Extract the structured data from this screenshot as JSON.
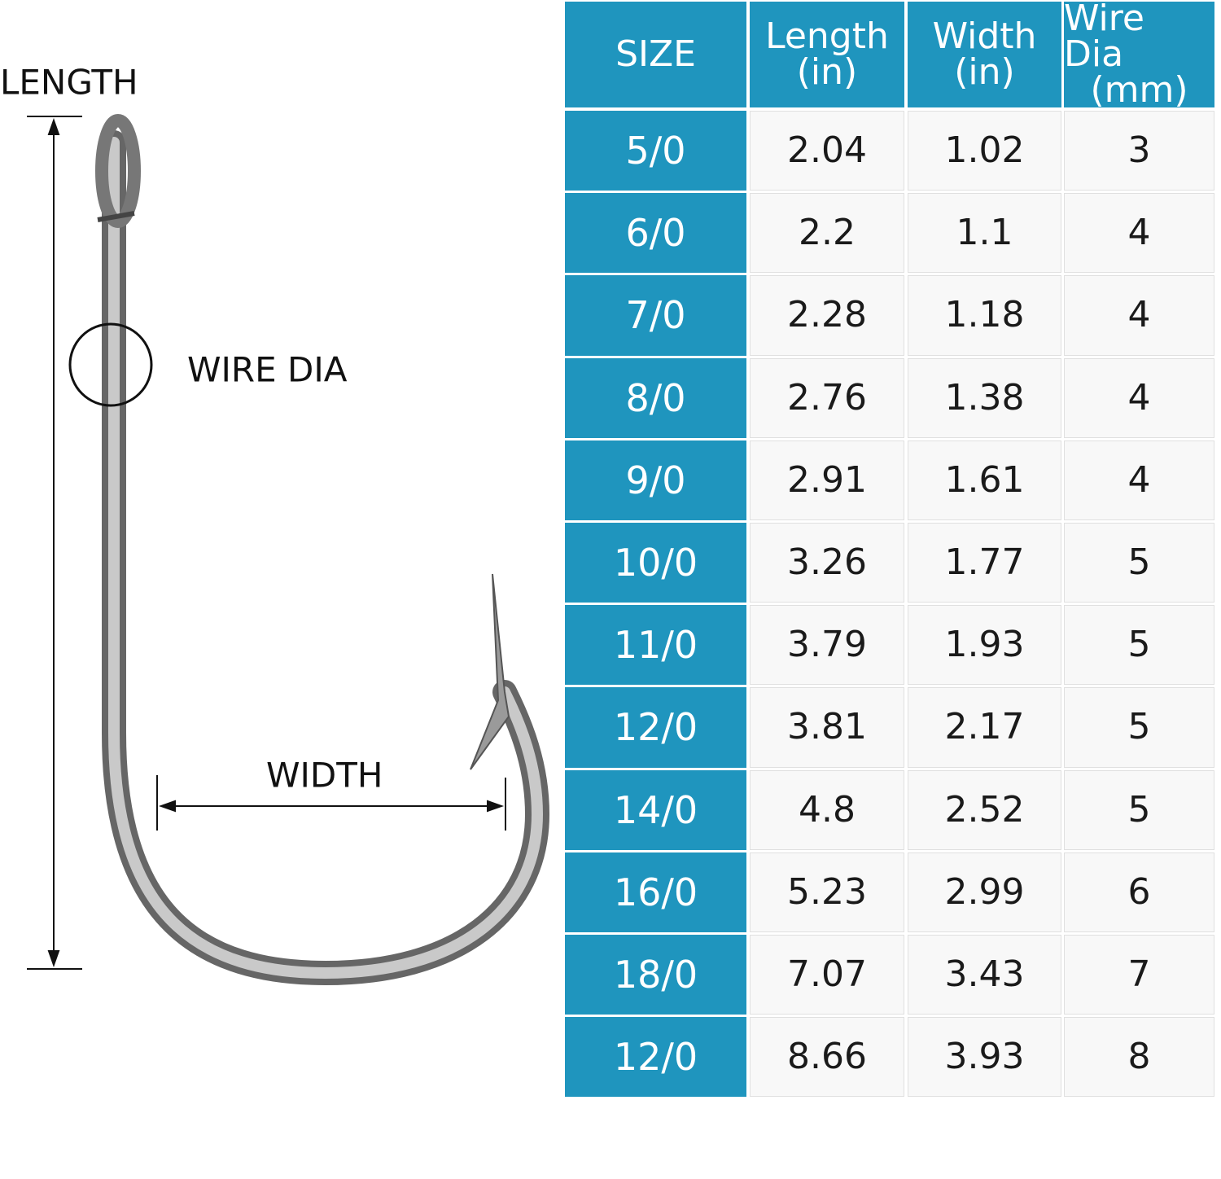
{
  "diagram": {
    "length_label": "LENGTH",
    "wire_label": "WIRE DIA",
    "width_label": "WIDTH"
  },
  "table": {
    "header": [
      [
        "SIZE"
      ],
      [
        "Length",
        "(in)"
      ],
      [
        "Width",
        "(in)"
      ],
      [
        "Wire Dia",
        "(mm)"
      ]
    ],
    "rows": [
      [
        "5/0",
        2.04,
        1.02,
        3
      ],
      [
        "6/0",
        2.2,
        1.1,
        4
      ],
      [
        "7/0",
        2.28,
        1.18,
        4
      ],
      [
        "8/0",
        2.76,
        1.38,
        4
      ],
      [
        "9/0",
        2.91,
        1.61,
        4
      ],
      [
        "10/0",
        3.26,
        1.77,
        5
      ],
      [
        "11/0",
        3.79,
        1.93,
        5
      ],
      [
        "12/0",
        3.81,
        2.17,
        5
      ],
      [
        "14/0",
        4.8,
        2.52,
        5
      ],
      [
        "16/0",
        5.23,
        2.99,
        6
      ],
      [
        "18/0",
        7.07,
        3.43,
        7
      ],
      [
        "12/0",
        8.66,
        3.93,
        8
      ]
    ]
  }
}
